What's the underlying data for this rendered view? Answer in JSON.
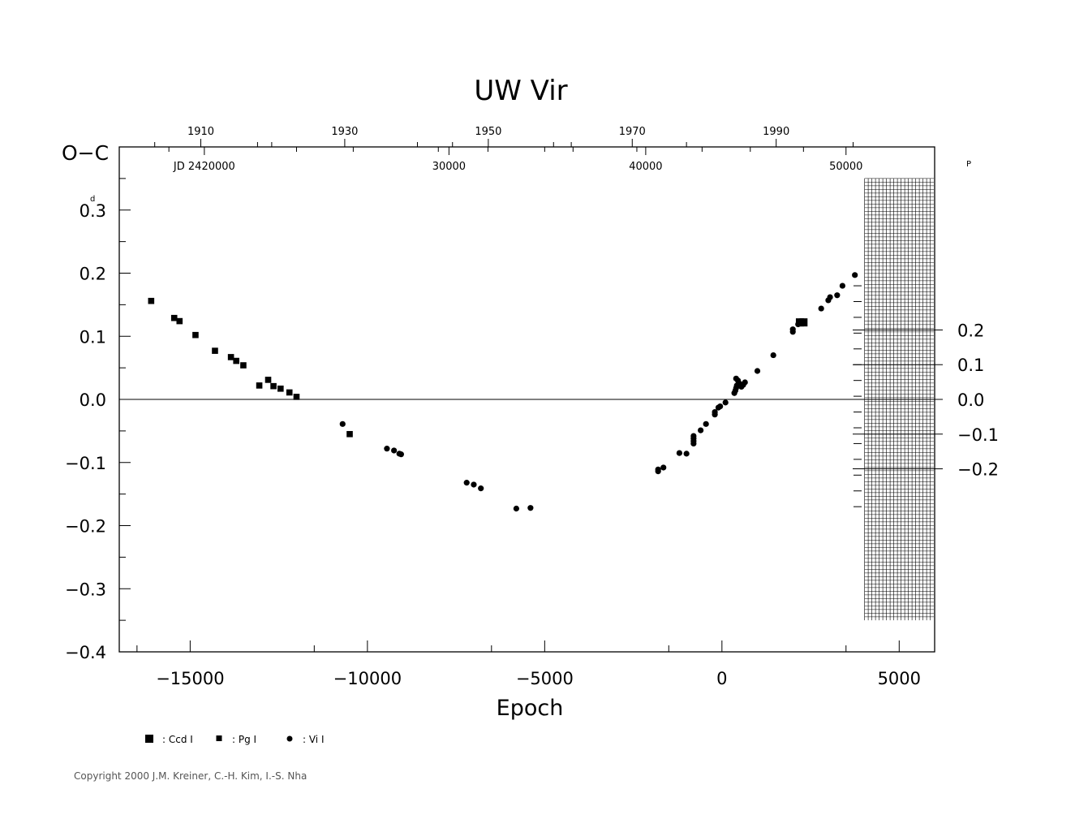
{
  "chart_data": {
    "type": "scatter",
    "title": "UW  Vir",
    "xlabel": "Epoch",
    "ylabel_left": "O−C",
    "xlim": [
      -17000,
      6000
    ],
    "ylim": [
      -0.4,
      0.4
    ],
    "x_ticks": [
      -15000,
      -10000,
      -5000,
      0,
      5000
    ],
    "x_tick_labels": [
      "−15000",
      "−10000",
      "−5000",
      "0",
      "5000"
    ],
    "y_ticks": [
      0.3,
      0.2,
      0.1,
      0.0,
      -0.1,
      -0.2,
      -0.3,
      -0.4
    ],
    "y_tick_labels": [
      "0.3",
      "0.2",
      "0.1",
      "0.0",
      "−0.1",
      "−0.2",
      "−0.3",
      "−0.4"
    ],
    "left_unit_superscript": "d",
    "right_axis": {
      "ticks": [
        0.2,
        0.1,
        0.0,
        -0.1,
        -0.2
      ],
      "tick_labels": [
        "0.2",
        "0.1",
        "0.0",
        "−0.1",
        "−0.2"
      ],
      "unit_superscript": "P",
      "days_per_unit": 0.55
    },
    "top_axis_years": {
      "ticks": [
        {
          "label": "1910",
          "epoch": -14700
        },
        {
          "label": "1930",
          "epoch": -10640
        },
        {
          "label": "1950",
          "epoch": -6590
        },
        {
          "label": "1970",
          "epoch": -2530
        },
        {
          "label": "1990",
          "epoch": 1530
        }
      ],
      "minor_epochs": [
        -16000,
        -13100,
        -12700,
        -8590,
        -7600,
        -4750,
        -4250,
        -1000,
        3700
      ]
    },
    "top_axis_jd": {
      "ticks": [
        {
          "label": "JD  2420000",
          "epoch": -14600
        },
        {
          "label": "30000",
          "epoch": -7700
        },
        {
          "label": "40000",
          "epoch": -2150
        },
        {
          "label": "50000",
          "epoch": 3500
        }
      ],
      "minor_epochs": [
        -15600,
        -12000,
        -10400,
        -8000,
        -6600,
        -5000,
        -4200,
        -2400,
        -560,
        800,
        2300
      ]
    },
    "hatched_region": {
      "x_from": 4000,
      "x_to": 6000,
      "y_from": -0.35,
      "y_to": 0.35
    },
    "zero_line": 0.0,
    "series": [
      {
        "name": ": Ccd  I",
        "marker": "square-large",
        "points": [
          [
            2200,
            0.122
          ],
          [
            2300,
            0.122
          ]
        ]
      },
      {
        "name": ": Pg  I",
        "marker": "square-small",
        "points": [
          [
            -16100,
            0.156
          ],
          [
            -15450,
            0.129
          ],
          [
            -15300,
            0.124
          ],
          [
            -14850,
            0.102
          ],
          [
            -14300,
            0.077
          ],
          [
            -13850,
            0.067
          ],
          [
            -13700,
            0.061
          ],
          [
            -13500,
            0.054
          ],
          [
            -13050,
            0.022
          ],
          [
            -12800,
            0.031
          ],
          [
            -12650,
            0.021
          ],
          [
            -12450,
            0.017
          ],
          [
            -12200,
            0.011
          ],
          [
            -12000,
            0.004
          ],
          [
            -10500,
            -0.055
          ]
        ]
      },
      {
        "name": ": Vi  I",
        "marker": "circle",
        "points": [
          [
            -10700,
            -0.039
          ],
          [
            -9450,
            -0.078
          ],
          [
            -9250,
            -0.081
          ],
          [
            -9100,
            -0.086
          ],
          [
            -9050,
            -0.087
          ],
          [
            -7200,
            -0.132
          ],
          [
            -7000,
            -0.135
          ],
          [
            -6800,
            -0.141
          ],
          [
            -5800,
            -0.173
          ],
          [
            -5400,
            -0.172
          ],
          [
            -1800,
            -0.111
          ],
          [
            -1800,
            -0.114
          ],
          [
            -1650,
            -0.108
          ],
          [
            -1200,
            -0.085
          ],
          [
            -1000,
            -0.086
          ],
          [
            -800,
            -0.058
          ],
          [
            -800,
            -0.062
          ],
          [
            -800,
            -0.066
          ],
          [
            -800,
            -0.07
          ],
          [
            -600,
            -0.049
          ],
          [
            -450,
            -0.039
          ],
          [
            -200,
            -0.024
          ],
          [
            -200,
            -0.02
          ],
          [
            -100,
            -0.013
          ],
          [
            -50,
            -0.011
          ],
          [
            100,
            -0.005
          ],
          [
            350,
            0.01
          ],
          [
            380,
            0.014
          ],
          [
            400,
            0.018
          ],
          [
            420,
            0.022
          ],
          [
            400,
            0.033
          ],
          [
            450,
            0.03
          ],
          [
            500,
            0.025
          ],
          [
            550,
            0.02
          ],
          [
            600,
            0.023
          ],
          [
            650,
            0.027
          ],
          [
            1000,
            0.045
          ],
          [
            1450,
            0.07
          ],
          [
            2000,
            0.107
          ],
          [
            2000,
            0.111
          ],
          [
            2150,
            0.119
          ],
          [
            2800,
            0.144
          ],
          [
            3000,
            0.157
          ],
          [
            3050,
            0.162
          ],
          [
            3250,
            0.165
          ],
          [
            3400,
            0.18
          ],
          [
            3750,
            0.197
          ]
        ]
      }
    ]
  },
  "copyright": "Copyright 2000 J.M. Kreiner, C.-H. Kim, I.-S. Nha"
}
